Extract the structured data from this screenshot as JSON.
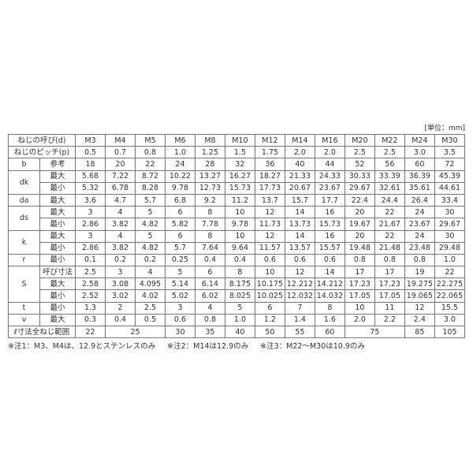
{
  "unit_label": "[単位：mm]",
  "header": {
    "label": "ねじの呼び(d)",
    "sizes": [
      "M3",
      "M4",
      "M5",
      "M6",
      "M8",
      "M10",
      "M12",
      "M14",
      "M16",
      "M20",
      "M22",
      "M24",
      "M30"
    ]
  },
  "rows": [
    {
      "group": "ねじのピッチ(p)",
      "sub": "",
      "values": [
        "0.5",
        "0.7",
        "0.8",
        "1.0",
        "1.25",
        "1.5",
        "1.75",
        "2.0",
        "2.0",
        "2.5",
        "2.5",
        "3.0",
        "3.5"
      ]
    },
    {
      "group": "b",
      "sub": "参考",
      "values": [
        "18",
        "20",
        "22",
        "24",
        "28",
        "32",
        "36",
        "40",
        "44",
        "52",
        "56",
        "60",
        "72"
      ]
    },
    {
      "group": "dk",
      "sub": "最大",
      "values": [
        "5.68",
        "7.22",
        "8.72",
        "10.22",
        "13.27",
        "16.27",
        "18.27",
        "21.33",
        "24.33",
        "30.33",
        "33.39",
        "36.39",
        "45.39"
      ]
    },
    {
      "group": "",
      "sub": "最小",
      "values": [
        "5.32",
        "6.78",
        "8.28",
        "9.78",
        "12.73",
        "15.73",
        "17.73",
        "20.67",
        "23.67",
        "29.67",
        "32.61",
        "35.61",
        "44.61"
      ]
    },
    {
      "group": "da",
      "sub": "最大",
      "values": [
        "3.6",
        "4.7",
        "5.7",
        "6.8",
        "9.2",
        "11.2",
        "13.7",
        "15.7",
        "17.7",
        "22.4",
        "24.4",
        "26.4",
        "33.4"
      ]
    },
    {
      "group": "ds",
      "sub": "最大",
      "values": [
        "3",
        "4",
        "5",
        "6",
        "8",
        "10",
        "12",
        "14",
        "16",
        "20",
        "22",
        "24",
        "30"
      ]
    },
    {
      "group": "",
      "sub": "最小",
      "values": [
        "2.86",
        "3.82",
        "4.82",
        "5.82",
        "7.78",
        "9.78",
        "11.73",
        "13.73",
        "15.73",
        "19.67",
        "21.67",
        "23.67",
        "29.67"
      ]
    },
    {
      "group": "k",
      "sub": "最大",
      "values": [
        "3",
        "4",
        "5",
        "6",
        "8",
        "10",
        "12",
        "14",
        "16",
        "20",
        "22",
        "24",
        "30"
      ]
    },
    {
      "group": "",
      "sub": "最小",
      "values": [
        "2.86",
        "3.82",
        "4.82",
        "5.7",
        "7.64",
        "9.64",
        "11.57",
        "13.57",
        "15.57",
        "19.48",
        "21.48",
        "23.48",
        "29.48"
      ]
    },
    {
      "group": "r",
      "sub": "最小",
      "values": [
        "0.1",
        "0.2",
        "0.2",
        "0.25",
        "0.4",
        "0.4",
        "0.6",
        "0.6",
        "0.6",
        "0.8",
        "0.8",
        "0.8",
        "1.0"
      ]
    },
    {
      "group": "S",
      "sub": "呼び寸法",
      "values": [
        "2.5",
        "3",
        "4",
        "5",
        "6",
        "8",
        "10",
        "12",
        "14",
        "17",
        "17",
        "19",
        "22"
      ]
    },
    {
      "group": "",
      "sub": "最大",
      "values": [
        "2.58",
        "3.08",
        "4.095",
        "5.14",
        "6.14",
        "8.175",
        "10.175",
        "12.212",
        "14.212",
        "17.23",
        "17.23",
        "19.275",
        "22.275"
      ]
    },
    {
      "group": "",
      "sub": "最小",
      "values": [
        "2.52",
        "3.02",
        "4.02",
        "5.02",
        "6.02",
        "8.025",
        "10.025",
        "12.032",
        "14.032",
        "17.05",
        "17.05",
        "19.065",
        "22.065"
      ]
    },
    {
      "group": "t",
      "sub": "最小",
      "values": [
        "1.3",
        "2",
        "2.5",
        "3",
        "4",
        "5",
        "6",
        "7",
        "8",
        "10",
        "11",
        "12",
        "15.5"
      ]
    },
    {
      "group": "v",
      "sub": "最大",
      "values": [
        "0.3",
        "0.4",
        "0.5",
        "0.6",
        "0.8",
        "1.0",
        "1.2",
        "1.4",
        "1.6",
        "2.0",
        "2.2",
        "2.4",
        "3.0"
      ]
    }
  ],
  "length_row": {
    "label": "ℓ寸法全ねじ範囲",
    "cells": [
      {
        "value": "22",
        "span": 1
      },
      {
        "value": "25",
        "span": 2
      },
      {
        "value": "30",
        "span": 1
      },
      {
        "value": "35",
        "span": 1
      },
      {
        "value": "40",
        "span": 1
      },
      {
        "value": "50",
        "span": 1
      },
      {
        "value": "55",
        "span": 1
      },
      {
        "value": "60",
        "span": 1
      },
      {
        "value": "75",
        "span": 2
      },
      {
        "value": "85",
        "span": 1
      },
      {
        "value": "105",
        "span": 1
      }
    ]
  },
  "notes": [
    "※注1：M3、M4は、12.9とステンレスのみ",
    "※注2：M14は12.9のみ",
    "※注3：M22〜M30は10.9のみ"
  ]
}
